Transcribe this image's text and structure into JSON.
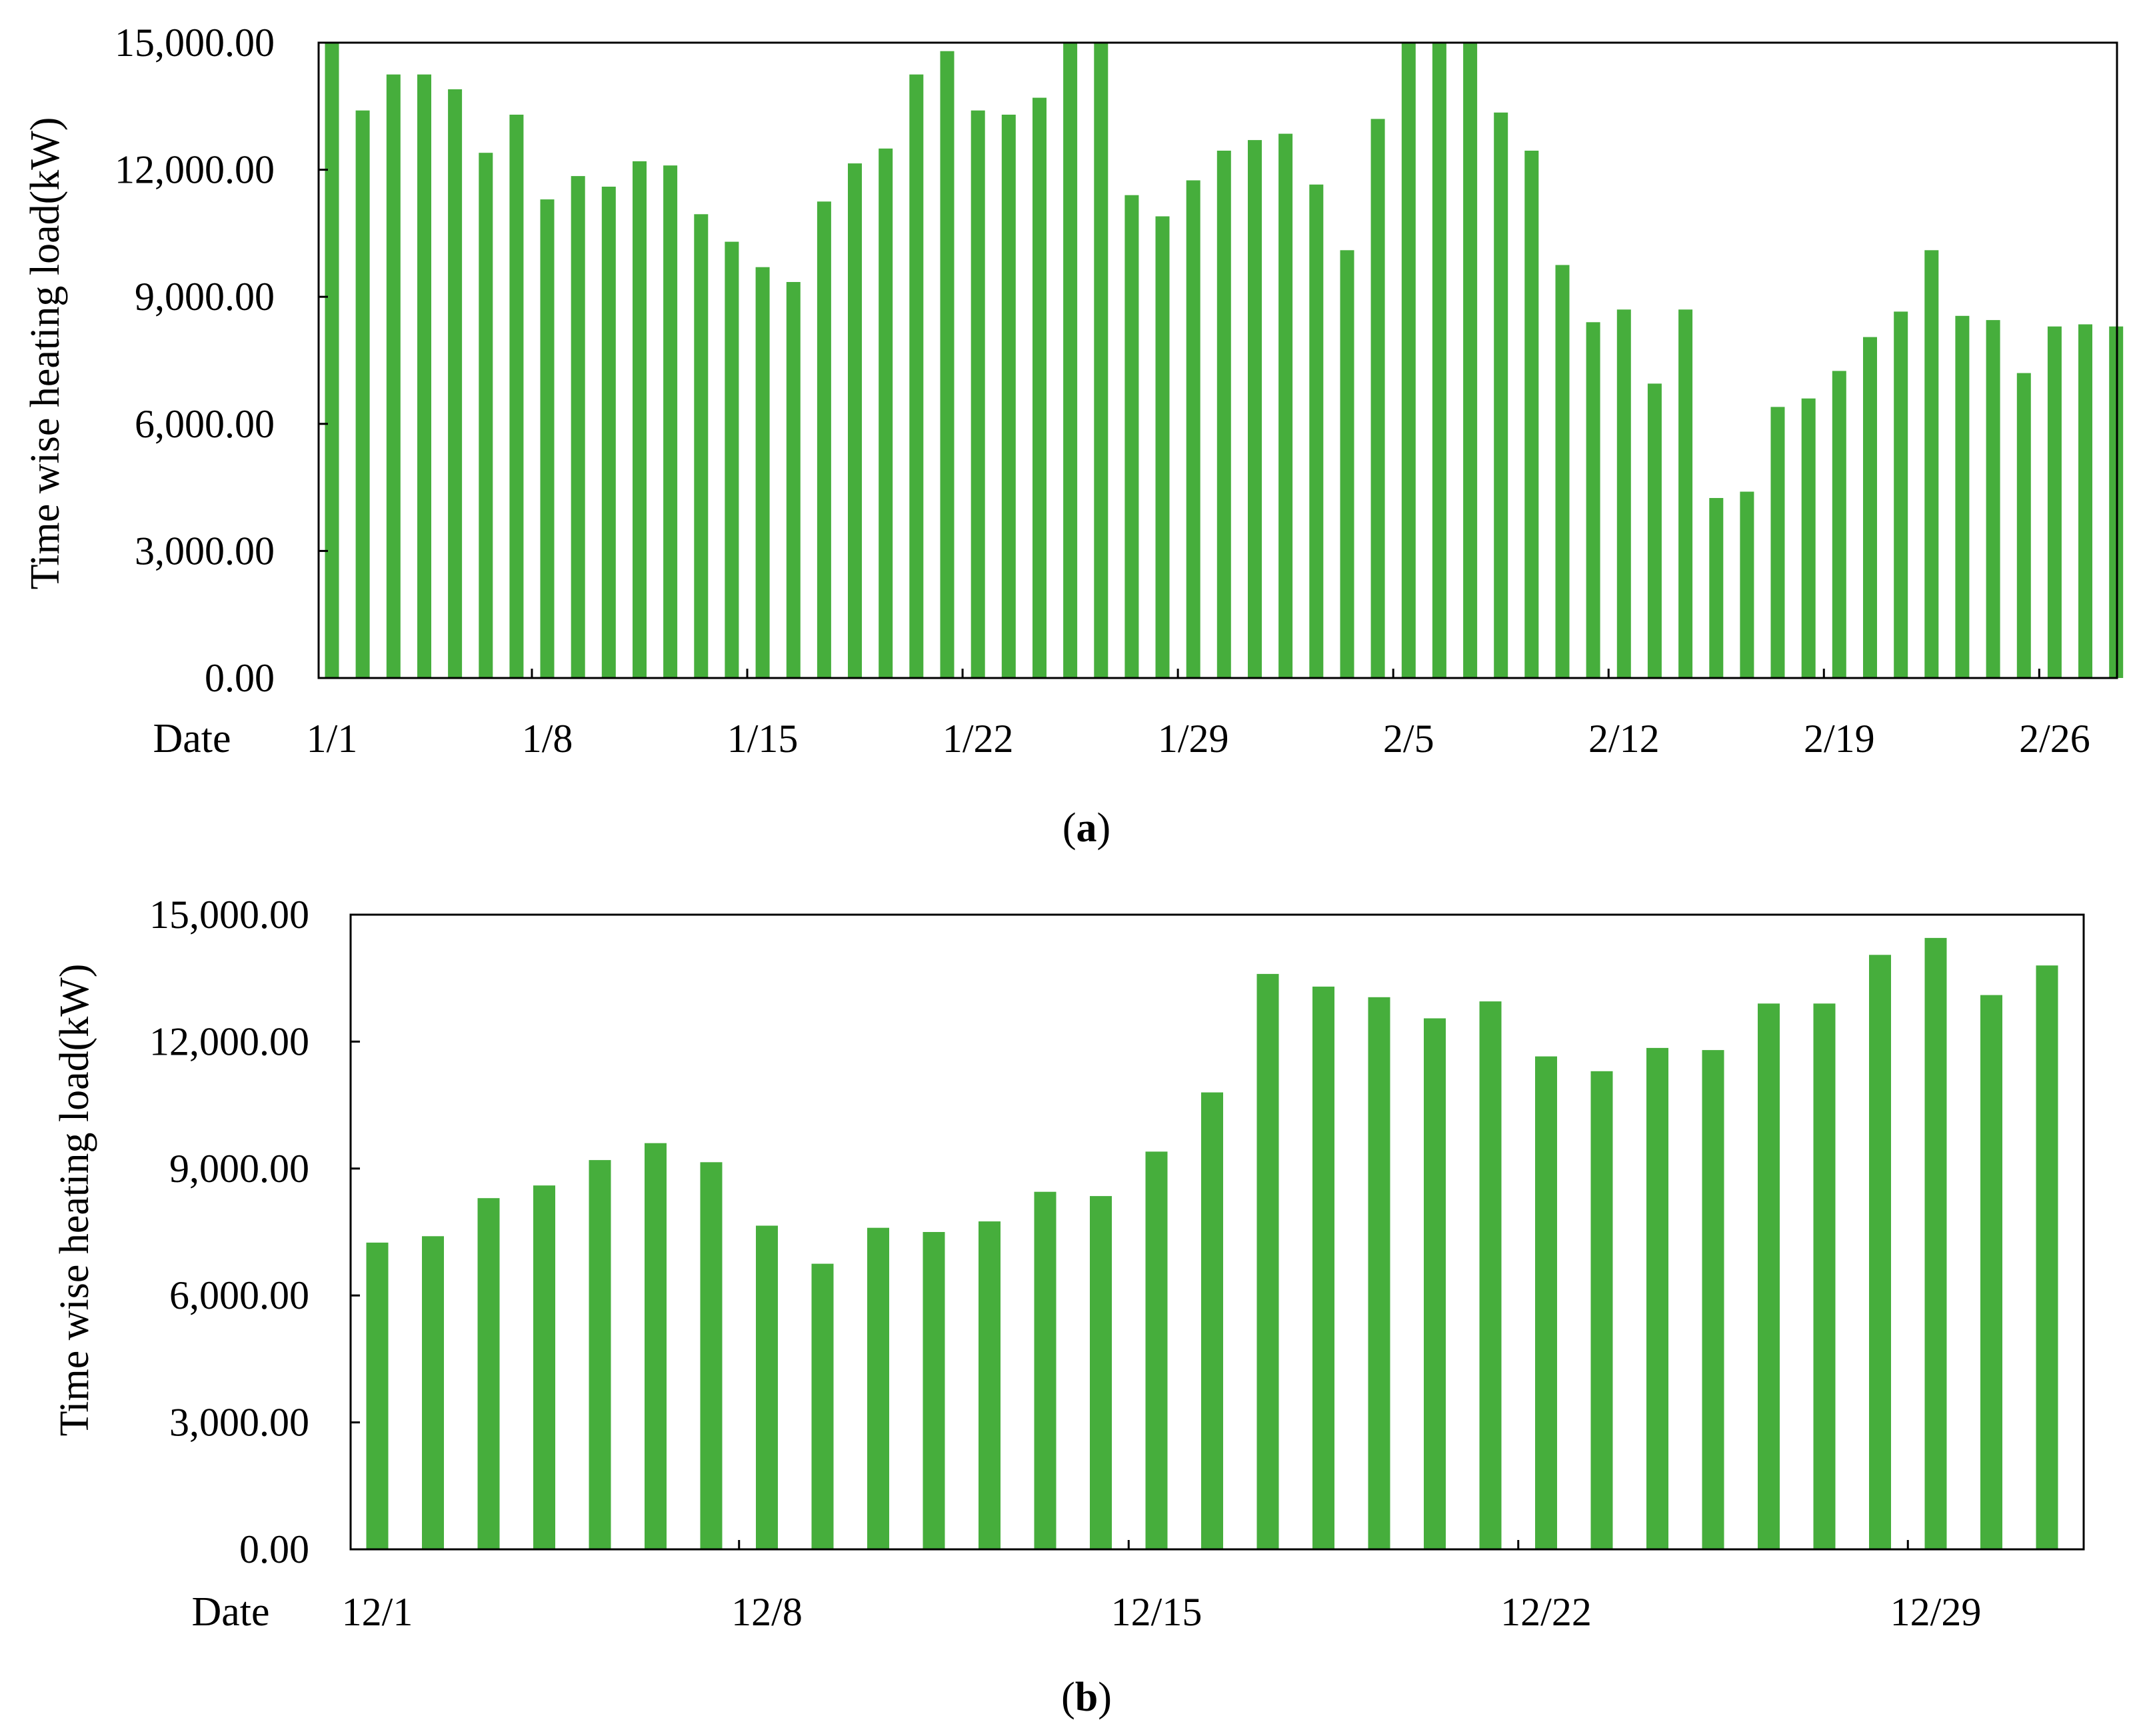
{
  "colors": {
    "bar": "#46ae3c",
    "axis": "#000000",
    "background": "#ffffff"
  },
  "chart_data": [
    {
      "type": "bar",
      "caption": {
        "open": "(",
        "letter": "a",
        "close": ")"
      },
      "ylabel": "Time wise heating load(kW)",
      "xlabel": "Date",
      "ylim": [
        0,
        15000
      ],
      "yticks": [
        "0.00",
        "3,000.00",
        "6,000.00",
        "9,000.00",
        "12,000.00",
        "15,000.00"
      ],
      "ytick_values": [
        0,
        3000,
        6000,
        9000,
        12000,
        15000
      ],
      "xtick_labels": [
        "1/1",
        "1/8",
        "1/15",
        "1/22",
        "1/29",
        "2/5",
        "2/12",
        "2/19",
        "2/26"
      ],
      "grid": false,
      "legend": "none",
      "values": [
        15000,
        13400,
        14250,
        14250,
        13900,
        12400,
        13300,
        11300,
        11850,
        11600,
        12200,
        12100,
        10950,
        10300,
        9700,
        9350,
        11250,
        12150,
        12500,
        14250,
        14800,
        13400,
        13300,
        13700,
        15000,
        15000,
        11400,
        10900,
        11750,
        12450,
        12700,
        12850,
        11650,
        10100,
        13200,
        15000,
        15000,
        15000,
        13350,
        12450,
        9750,
        8400,
        8700,
        6950,
        8700,
        4250,
        4400,
        6400,
        6600,
        7250,
        8050,
        8650,
        10100,
        8550,
        8450,
        7200,
        8300,
        8350,
        8300
      ]
    },
    {
      "type": "bar",
      "caption": {
        "open": "(",
        "letter": "b",
        "close": ")"
      },
      "ylabel": "Time wise heating load(kW)",
      "xlabel": "Date",
      "ylim": [
        0,
        15000
      ],
      "yticks": [
        "0.00",
        "3,000.00",
        "6,000.00",
        "9,000.00",
        "12,000.00",
        "15,000.00"
      ],
      "ytick_values": [
        0,
        3000,
        6000,
        9000,
        12000,
        15000
      ],
      "xtick_labels": [
        "12/1",
        "12/8",
        "12/15",
        "12/22",
        "12/29"
      ],
      "grid": false,
      "legend": "none",
      "values": [
        7250,
        7400,
        8300,
        8600,
        9200,
        9600,
        9150,
        7650,
        6750,
        7600,
        7500,
        7750,
        8450,
        8350,
        9400,
        10800,
        13600,
        13300,
        13050,
        12550,
        12950,
        11650,
        11300,
        11850,
        11800,
        12900,
        12900,
        14050,
        14450,
        13100,
        13800
      ]
    }
  ]
}
